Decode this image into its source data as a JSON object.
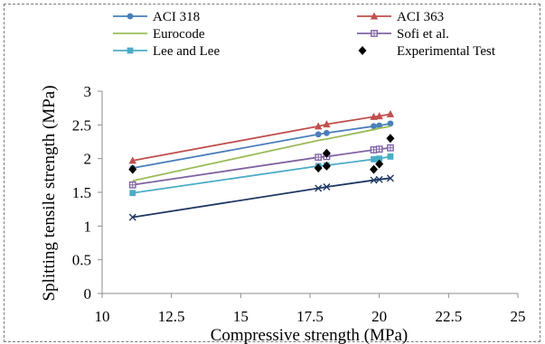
{
  "chart_data": {
    "type": "line",
    "title": "",
    "xlabel": "Compressive strength (MPa)",
    "ylabel": "Splitting tensile strength (MPa)",
    "xlim": [
      10,
      25
    ],
    "ylim": [
      0,
      3
    ],
    "xticks": [
      "10",
      "12.5",
      "15",
      "17.5",
      "20",
      "22.5",
      "25"
    ],
    "yticks": [
      "0",
      "0.5",
      "1",
      "1.5",
      "2",
      "2.5",
      "3"
    ],
    "grid": false,
    "legend_position": "top",
    "x": [
      11.1,
      17.8,
      18.1,
      19.8,
      20.0,
      20.4
    ],
    "series": [
      {
        "name": "ACI 318",
        "color": "#4a7ebb",
        "marker": "circle",
        "values": [
          1.86,
          2.36,
          2.38,
          2.48,
          2.49,
          2.52
        ]
      },
      {
        "name": "ACI 363",
        "color": "#c0504d",
        "marker": "triangle",
        "values": [
          1.97,
          2.48,
          2.51,
          2.62,
          2.63,
          2.66
        ]
      },
      {
        "name": "Eurocode",
        "color": "#9bbb59",
        "marker": "none",
        "values": [
          1.67,
          2.27,
          2.29,
          2.43,
          2.45,
          2.48
        ]
      },
      {
        "name": "Sofi et al.",
        "color": "#8064a2",
        "marker": "square-hollow",
        "values": [
          1.61,
          2.02,
          2.03,
          2.13,
          2.14,
          2.16
        ]
      },
      {
        "name": "Lee and Lee",
        "color": "#4bacc6",
        "marker": "square",
        "values": [
          1.49,
          1.89,
          1.9,
          1.99,
          2.0,
          2.03
        ]
      },
      {
        "name": "",
        "color": "#1f3864",
        "marker": "x",
        "values": [
          1.13,
          1.56,
          1.58,
          1.68,
          1.69,
          1.71
        ]
      }
    ],
    "scatter": {
      "name": "Experimental Test",
      "color": "#000000",
      "marker": "diamond",
      "x": [
        11.1,
        17.8,
        18.1,
        18.1,
        19.8,
        20.0,
        20.4
      ],
      "y": [
        1.84,
        1.86,
        2.08,
        1.89,
        1.84,
        1.92,
        2.3
      ]
    }
  }
}
